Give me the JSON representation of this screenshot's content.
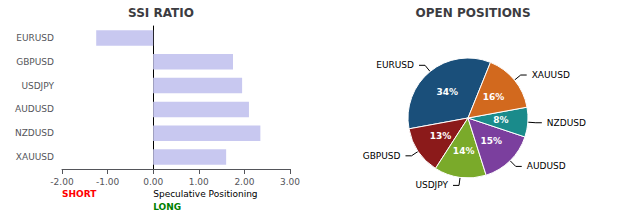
{
  "chart_data": [
    {
      "type": "bar",
      "title": "SSI RATIO",
      "orientation": "horizontal",
      "categories": [
        "XAUUSD",
        "NZDUSD",
        "AUDUSD",
        "USDJPY",
        "GBPUSD",
        "EURUSD"
      ],
      "values": [
        1.6,
        2.35,
        2.1,
        1.95,
        1.75,
        -1.25
      ],
      "color": "#c8c8f0",
      "xlim": [
        -2.0,
        3.0
      ],
      "xticks": [
        {
          "value": -2.0,
          "label": "-2.00"
        },
        {
          "value": -1.0,
          "label": "-1.00"
        },
        {
          "value": 0.0,
          "label": "0.00"
        },
        {
          "value": 1.0,
          "label": "1.00"
        },
        {
          "value": 2.0,
          "label": "2.00"
        },
        {
          "value": 3.0,
          "label": "3.00"
        }
      ],
      "grid": false,
      "annotations": [
        {
          "text": "SHORT",
          "color": "red"
        },
        {
          "text": "Speculative Positioning",
          "color": "black"
        },
        {
          "text": "LONG",
          "color": "green"
        }
      ]
    },
    {
      "type": "pie",
      "title": "OPEN POSITIONS",
      "categories": [
        "EURUSD",
        "GBPUSD",
        "USDJPY",
        "AUDUSD",
        "NZDUSD",
        "XAUUSD"
      ],
      "values": [
        34,
        13,
        14,
        15,
        8,
        16
      ],
      "value_labels": [
        "34%",
        "13%",
        "14%",
        "15%",
        "8%",
        "16%"
      ],
      "data_labels": true,
      "colors": [
        "#1a4f7a",
        "#8b1a1a",
        "#7aaa2a",
        "#7b3f9e",
        "#1a8b8b",
        "#d2691e"
      ]
    }
  ]
}
